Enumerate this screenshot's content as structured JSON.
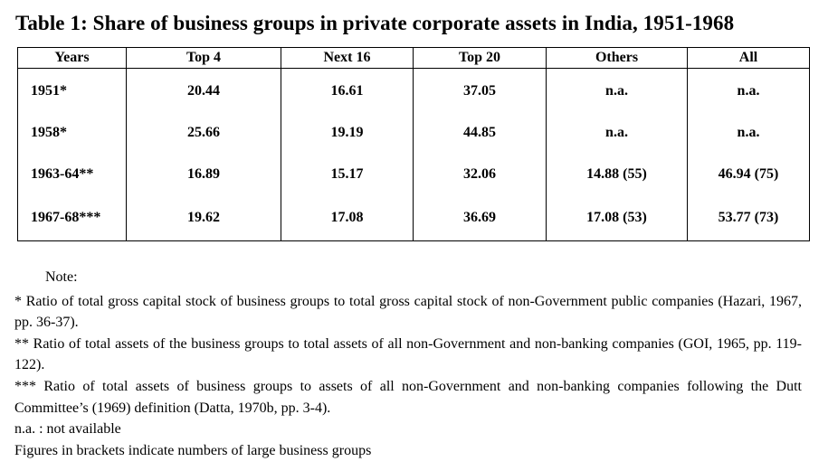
{
  "title": "Table 1: Share of business groups in private corporate assets in India, 1951-1968",
  "table": {
    "headers": [
      "Years",
      "Top 4",
      "Next 16",
      "Top 20",
      "Others",
      "All"
    ],
    "rows": [
      [
        "1951*",
        "20.44",
        "16.61",
        "37.05",
        "n.a.",
        "n.a."
      ],
      [
        "1958*",
        "25.66",
        "19.19",
        "44.85",
        "n.a.",
        "n.a."
      ],
      [
        "1963-64**",
        "16.89",
        "15.17",
        "32.06",
        "14.88 (55)",
        "46.94 (75)"
      ],
      [
        "1967-68***",
        "19.62",
        "17.08",
        "36.69",
        "17.08 (53)",
        "53.77 (73)"
      ]
    ]
  },
  "notes": {
    "heading": "Note:",
    "items": [
      "* Ratio of total gross capital stock of business groups to total gross capital stock of non-Government public companies (Hazari, 1967, pp. 36-37).",
      "** Ratio of total assets of the business groups to total assets of all non-Government and non-banking companies  (GOI, 1965, pp. 119-122).",
      "*** Ratio of total assets of business groups to assets of all non-Government and non-banking companies following the Dutt Committee’s (1969) definition (Datta, 1970b, pp. 3-4).",
      "n.a. : not available",
      "Figures in brackets indicate numbers of large business groups"
    ]
  }
}
